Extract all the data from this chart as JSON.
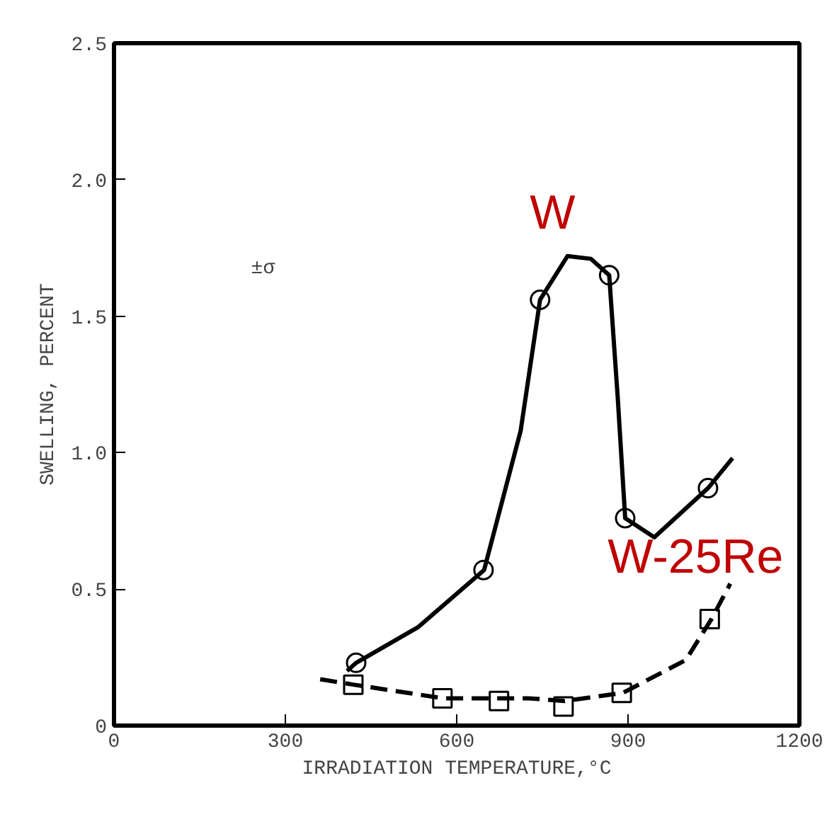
{
  "chart_data": {
    "type": "scatter",
    "xlabel": "IRRADIATION TEMPERATURE,°C",
    "ylabel": "SWELLING, PERCENT",
    "xlim": [
      0,
      1200
    ],
    "ylim": [
      0,
      2.5
    ],
    "xticks": [
      0,
      300,
      600,
      900,
      1200
    ],
    "yticks": [
      0,
      {
        "value": 0.5,
        "label": "0.5"
      },
      {
        "value": 1,
        "label": "1.0"
      },
      {
        "value": 1.5,
        "label": "1.5"
      },
      {
        "value": 2,
        "label": "2.0"
      },
      {
        "value": 2.5,
        "label": "2.5"
      }
    ],
    "grid": false,
    "annotations": [
      "±σ"
    ],
    "series": [
      {
        "name": "W",
        "color": "#000000",
        "marker": "circle",
        "x": [
          424,
          647,
          746,
          867,
          895,
          1040
        ],
        "values": [
          0.23,
          0.57,
          1.56,
          1.65,
          0.76,
          0.87
        ]
      },
      {
        "name": "W-25Re",
        "color": "#000000",
        "marker": "square",
        "x": [
          419,
          575,
          674,
          787,
          889,
          1043
        ],
        "values": [
          0.15,
          0.1,
          0.09,
          0.07,
          0.12,
          0.39
        ]
      },
      {
        "type": "line",
        "color": "#000000",
        "line_style": "solid",
        "x": [
          408,
          424,
          532,
          648,
          712,
          746,
          794,
          835,
          867,
          882,
          895,
          946,
          1040,
          1083
        ],
        "values": [
          0.2,
          0.23,
          0.36,
          0.57,
          1.08,
          1.56,
          1.72,
          1.71,
          1.65,
          1.2,
          0.76,
          0.69,
          0.87,
          0.98
        ]
      },
      {
        "type": "line",
        "color": "#000000",
        "line_style": "dashed",
        "x": [
          361,
          419,
          577,
          726,
          789,
          891,
          1001,
          1046,
          1079
        ],
        "values": [
          0.17,
          0.15,
          0.1,
          0.1,
          0.09,
          0.12,
          0.24,
          0.39,
          0.52
        ]
      }
    ]
  }
}
